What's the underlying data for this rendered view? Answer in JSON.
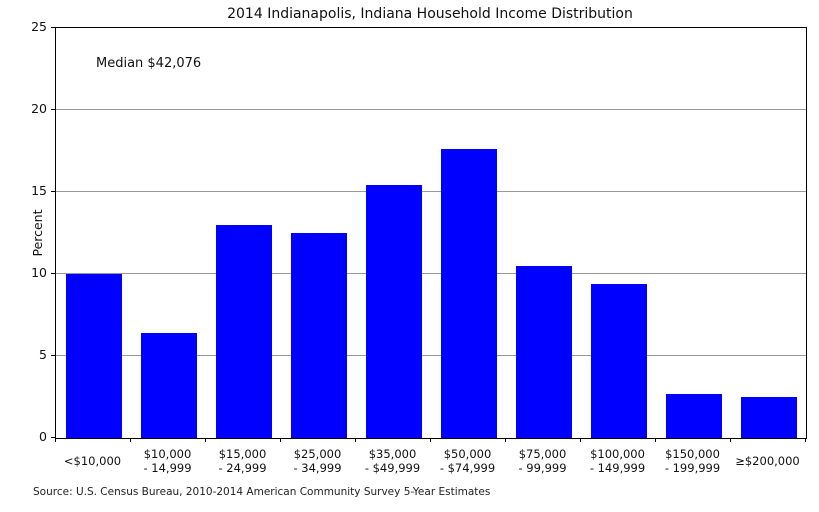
{
  "chart_data": {
    "type": "bar",
    "title": "2014 Indianapolis, Indiana Household Income Distribution",
    "annotation": "Median $42,076",
    "ylabel": "Percent",
    "xlabel": "",
    "ylim": [
      0,
      25
    ],
    "yticks": [
      0,
      5,
      10,
      15,
      20,
      25
    ],
    "grid": true,
    "legend": "none",
    "bar_color": "#0000ff",
    "gridline_color": "#999999",
    "categories": [
      [
        "<$10,000"
      ],
      [
        "$10,000",
        "- 14,999"
      ],
      [
        "$15,000",
        "- 24,999"
      ],
      [
        "$25,000",
        "- 34,999"
      ],
      [
        "$35,000",
        "- $49,999"
      ],
      [
        "$50,000",
        "- $74,999"
      ],
      [
        "$75,000",
        "- 99,999"
      ],
      [
        "$100,000",
        "- 149,999"
      ],
      [
        "$150,000",
        "- 199,999"
      ],
      [
        "≥$200,000"
      ]
    ],
    "values": [
      10.0,
      6.4,
      13.0,
      12.5,
      15.4,
      17.6,
      10.5,
      9.4,
      2.7,
      2.5
    ],
    "source": "Source: U.S. Census Bureau, 2010-2014 American Community Survey 5-Year Estimates"
  }
}
